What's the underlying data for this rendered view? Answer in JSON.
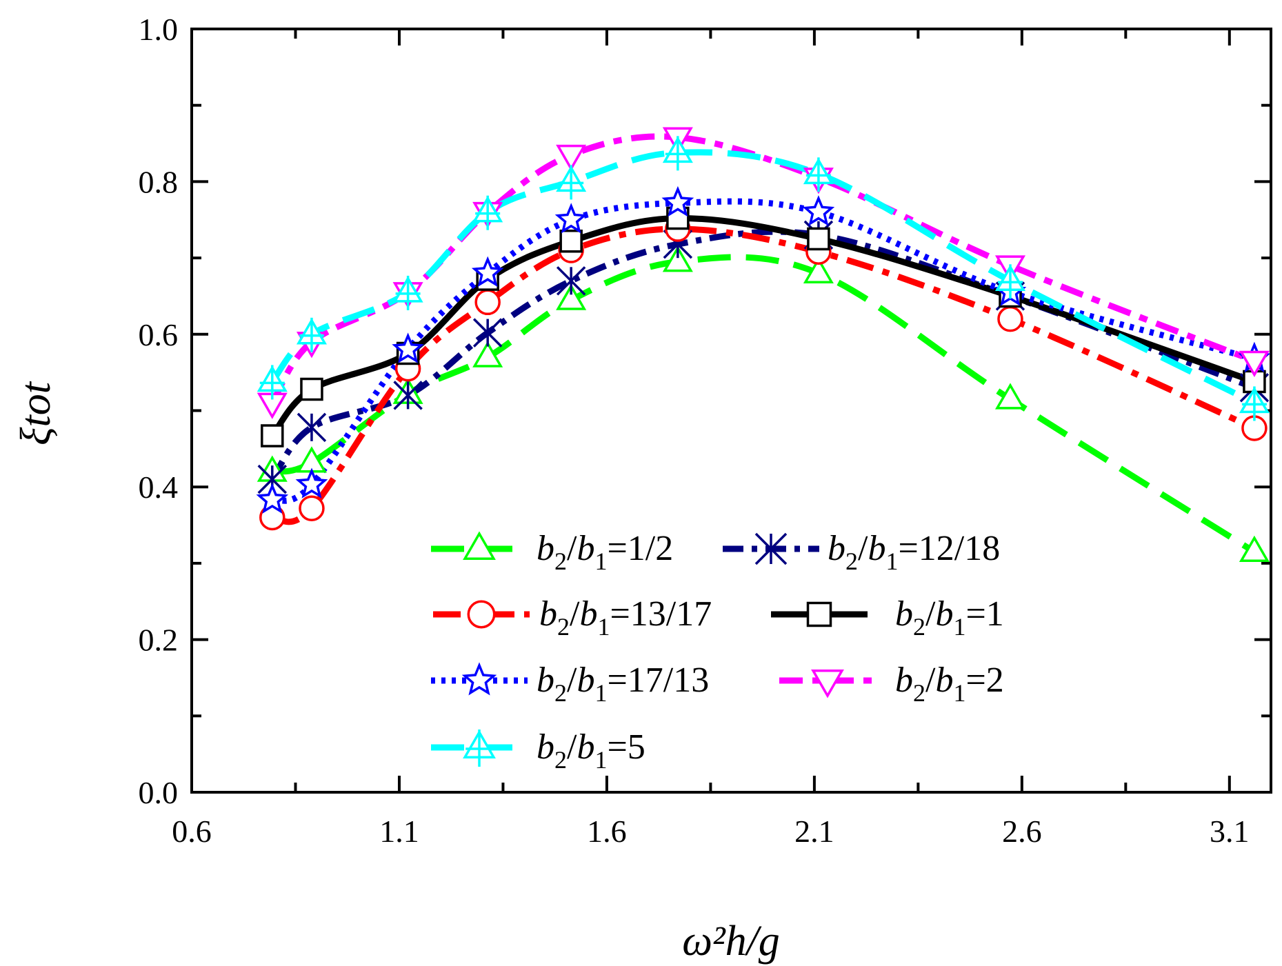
{
  "chart_data": {
    "type": "line",
    "title": "",
    "xlabel": "ω²h/g",
    "ylabel": "ξtot",
    "xlim": [
      0.6,
      3.2
    ],
    "ylim": [
      0.0,
      1.0
    ],
    "xticks": [
      0.6,
      1.1,
      1.6,
      2.1,
      2.6,
      3.1
    ],
    "xtick_labels": [
      "0.6",
      "1.1",
      "1.6",
      "2.1",
      "2.6",
      "3.1"
    ],
    "yticks": [
      0.0,
      0.2,
      0.4,
      0.6,
      0.8,
      1.0
    ],
    "ytick_labels": [
      "0.0",
      "0.2",
      "0.4",
      "0.6",
      "0.8",
      "1.0"
    ],
    "x": [
      0.794,
      0.889,
      1.121,
      1.313,
      1.514,
      1.771,
      2.11,
      2.572,
      3.16
    ],
    "legend_position": "bottom-center",
    "series": [
      {
        "name": "b2/b1=1/2",
        "sub_a": "2",
        "sub_b": "1",
        "ratio": "1/2",
        "color": "#00ff00",
        "marker": "triangle-up",
        "dash": "48,22",
        "values": [
          0.42,
          0.432,
          0.522,
          0.57,
          0.645,
          0.695,
          0.68,
          0.515,
          0.315
        ]
      },
      {
        "name": "b2/b1=12/18",
        "sub_a": "2",
        "sub_b": "1",
        "ratio": "12/18",
        "color": "#000080",
        "marker": "x-star",
        "dash": "30,12,8,12",
        "values": [
          0.41,
          0.478,
          0.52,
          0.602,
          0.67,
          0.718,
          0.73,
          0.65,
          0.53
        ]
      },
      {
        "name": "b2/b1=13/17",
        "sub_a": "2",
        "sub_b": "1",
        "ratio": "13/17",
        "color": "#ff0000",
        "marker": "circle",
        "dash": "40,14,10,14",
        "values": [
          0.36,
          0.372,
          0.555,
          0.642,
          0.71,
          0.738,
          0.708,
          0.62,
          0.477
        ]
      },
      {
        "name": "b2/b1=1",
        "sub_a": "2",
        "sub_b": "1",
        "ratio": "1",
        "color": "#000000",
        "marker": "square",
        "dash": "",
        "values": [
          0.467,
          0.528,
          0.575,
          0.672,
          0.722,
          0.752,
          0.725,
          0.65,
          0.538
        ]
      },
      {
        "name": "b2/b1=17/13",
        "sub_a": "2",
        "sub_b": "1",
        "ratio": "17/13",
        "color": "#0000ff",
        "marker": "star",
        "dash": "6,9",
        "values": [
          0.383,
          0.403,
          0.58,
          0.68,
          0.75,
          0.772,
          0.76,
          0.655,
          0.568
        ]
      },
      {
        "name": "b2/b1=2",
        "sub_a": "2",
        "sub_b": "1",
        "ratio": "2",
        "color": "#ff00ff",
        "marker": "triangle-down",
        "dash": "34,14,12,14",
        "values": [
          0.51,
          0.59,
          0.655,
          0.76,
          0.835,
          0.858,
          0.805,
          0.69,
          0.565
        ]
      },
      {
        "name": "b2/b1=5",
        "sub_a": "2",
        "sub_b": "1",
        "ratio": "5",
        "color": "#00ffff",
        "marker": "triangle-cross",
        "dash": "48,22",
        "values": [
          0.538,
          0.6,
          0.655,
          0.76,
          0.8,
          0.838,
          0.81,
          0.67,
          0.51
        ]
      }
    ]
  }
}
